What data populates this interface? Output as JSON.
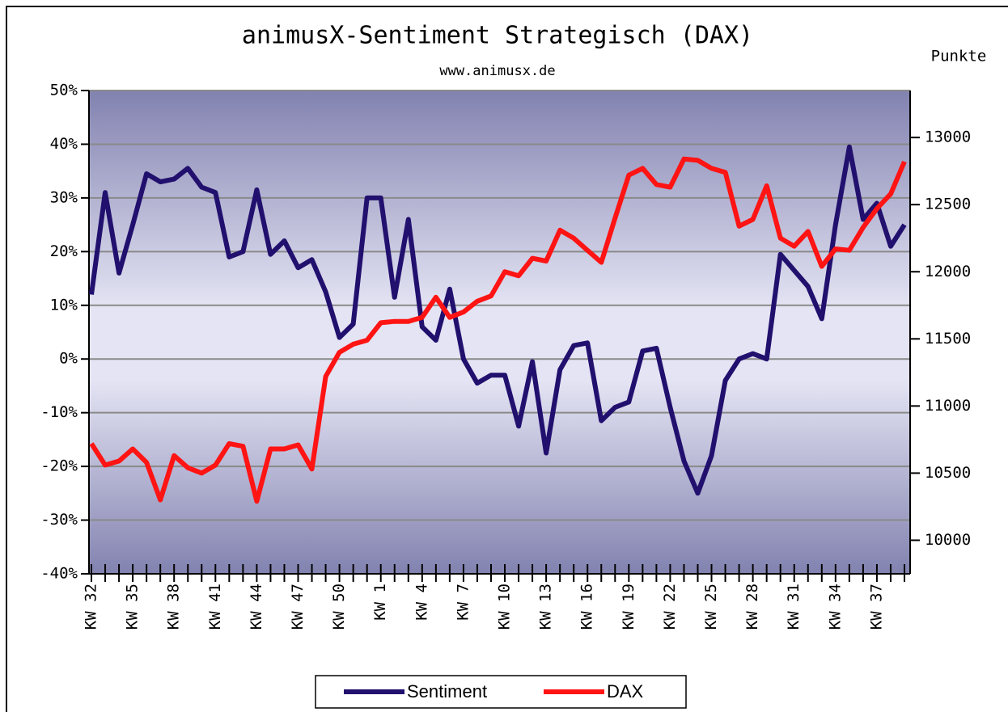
{
  "chart_data": {
    "type": "line",
    "title": "animusX-Sentiment Strategisch (DAX)",
    "subtitle": "www.animusx.de",
    "y2_label": "Punkte",
    "categories": [
      "KW 32",
      null,
      null,
      "KW 35",
      null,
      null,
      "KW 38",
      null,
      null,
      "KW 41",
      null,
      null,
      "KW 44",
      null,
      null,
      "KW 47",
      null,
      null,
      "KW 50",
      null,
      null,
      "KW 1",
      null,
      null,
      "KW 4",
      null,
      null,
      "KW 7",
      null,
      null,
      "KW 10",
      null,
      null,
      "KW 13",
      null,
      null,
      "KW 16",
      null,
      null,
      "KW 19",
      null,
      null,
      "KW 22",
      null,
      null,
      "KW 25",
      null,
      null,
      "KW 28",
      null,
      null,
      "KW 31",
      null,
      null,
      "KW 34",
      null,
      null,
      "KW 37",
      null,
      null
    ],
    "series": [
      {
        "name": "Sentiment",
        "color": "#22106e",
        "values": [
          12,
          31,
          16,
          25,
          34.5,
          33,
          33.5,
          35.5,
          32,
          31,
          19,
          20,
          31.5,
          19.5,
          22,
          17,
          18.5,
          12.5,
          4,
          6.5,
          30,
          30,
          11.5,
          26,
          6,
          3.5,
          13,
          0,
          -4.5,
          -3,
          -3,
          -12.5,
          -0.5,
          -17.5,
          -2,
          2.5,
          3,
          -11.5,
          -9,
          -8,
          1.5,
          2,
          -9,
          -19,
          -25,
          -18,
          -4,
          0,
          1,
          0,
          19.5,
          16.5,
          13.5,
          7.5,
          25,
          39.5,
          26,
          29,
          21,
          25
        ]
      },
      {
        "name": "DAX",
        "color": "#ff1414",
        "axis": "y2",
        "values": [
          10720,
          10560,
          10590,
          10680,
          10580,
          10300,
          10630,
          10540,
          10500,
          10560,
          10720,
          10700,
          10290,
          10680,
          10680,
          10710,
          10530,
          11220,
          11400,
          11460,
          11490,
          11620,
          11630,
          11630,
          11660,
          11810,
          11660,
          11700,
          11780,
          11820,
          12000,
          11970,
          12100,
          12080,
          12310,
          12250,
          12160,
          12070,
          12400,
          12720,
          12770,
          12650,
          12630,
          12840,
          12830,
          12770,
          12740,
          12340,
          12390,
          12640,
          12250,
          12190,
          12300,
          12040,
          12170,
          12160,
          12330,
          12470,
          12580,
          12820
        ]
      }
    ],
    "ylim": [
      -40,
      50
    ],
    "yticks": [
      {
        "value": -40,
        "label": "-40%"
      },
      {
        "value": -30,
        "label": "-30%"
      },
      {
        "value": -20,
        "label": "-20%"
      },
      {
        "value": -10,
        "label": "-10%"
      },
      {
        "value": 0,
        "label": "0%"
      },
      {
        "value": 10,
        "label": "10%"
      },
      {
        "value": 20,
        "label": "20%"
      },
      {
        "value": 30,
        "label": "30%"
      },
      {
        "value": 40,
        "label": "40%"
      },
      {
        "value": 50,
        "label": "50%"
      }
    ],
    "y2lim": [
      9750,
      13350
    ],
    "y2ticks": [
      10000,
      10500,
      11000,
      11500,
      12000,
      12500,
      13000
    ],
    "grid": true,
    "legend": "bottom"
  }
}
